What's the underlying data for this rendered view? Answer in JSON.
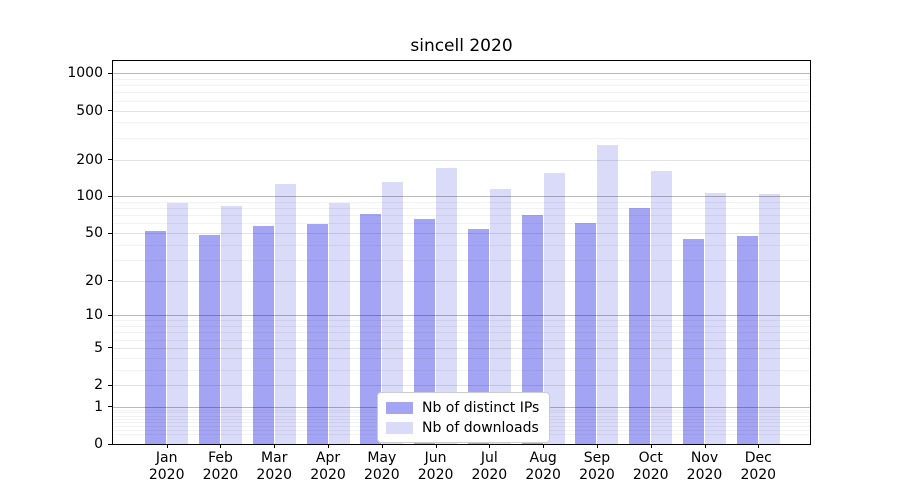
{
  "chart_data": {
    "type": "bar",
    "title": "sincell 2020",
    "months": [
      "Jan",
      "Feb",
      "Mar",
      "Apr",
      "May",
      "Jun",
      "Jul",
      "Aug",
      "Sep",
      "Oct",
      "Nov",
      "Dec"
    ],
    "year": "2020",
    "series": [
      {
        "name": "Nb of distinct IPs",
        "color": "#a4a4f4",
        "values": [
          52,
          48,
          57,
          59,
          72,
          65,
          54,
          70,
          60,
          81,
          45,
          47
        ]
      },
      {
        "name": "Nb of downloads",
        "color": "#dadaf9",
        "values": [
          88,
          83,
          127,
          88,
          131,
          171,
          115,
          155,
          263,
          162,
          107,
          104
        ]
      }
    ],
    "yscale": "log1p",
    "yticks": [
      1000,
      500,
      200,
      100,
      50,
      20,
      10,
      5,
      2,
      1,
      0
    ],
    "decade_ticks": [
      1,
      10,
      100,
      1000
    ],
    "ylim": [
      0,
      1260
    ],
    "grid": true,
    "legend_position": "lower center"
  }
}
